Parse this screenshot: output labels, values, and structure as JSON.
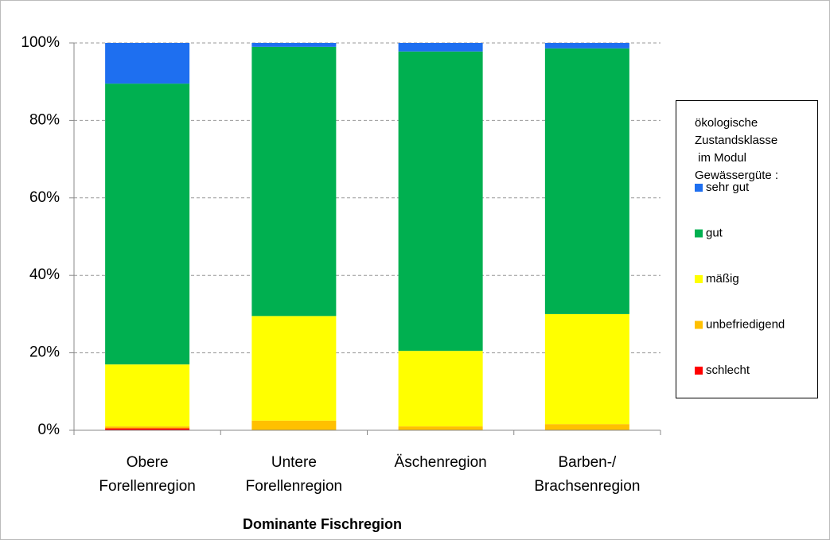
{
  "chart_data": {
    "type": "stacked_bar",
    "categories": [
      "Obere Forellenregion",
      "Untere Forellenregion",
      "Äschenregion",
      "Barben-/ Brachsenregion"
    ],
    "series": [
      {
        "name": "schlecht",
        "color": "#ff0000",
        "values": [
          0.5,
          0,
          0,
          0
        ]
      },
      {
        "name": "unbefriedigend",
        "color": "#ffc000",
        "values": [
          0.5,
          2.5,
          1,
          1.6
        ]
      },
      {
        "name": "mäßig",
        "color": "#ffff00",
        "values": [
          16,
          27,
          19.5,
          28.4
        ]
      },
      {
        "name": "gut",
        "color": "#00b050",
        "values": [
          72.5,
          69.5,
          77.3,
          68.6
        ]
      },
      {
        "name": "sehr gut",
        "color": "#1e6ff0",
        "values": [
          10.5,
          1,
          2.2,
          1.4
        ]
      }
    ],
    "ylim": [
      0,
      100
    ],
    "yticks": [
      {
        "value": 0,
        "label": "0%"
      },
      {
        "value": 20,
        "label": "20%"
      },
      {
        "value": 40,
        "label": "40%"
      },
      {
        "value": 60,
        "label": "60%"
      },
      {
        "value": 80,
        "label": "80%"
      },
      {
        "value": 100,
        "label": "100%"
      }
    ],
    "grid": true,
    "xlabel": "Dominante Fischregion",
    "legend_title": [
      "ökologische",
      "Zustandsklasse",
      " im Modul",
      "Gewässergüte :"
    ],
    "legend_position": "right"
  }
}
